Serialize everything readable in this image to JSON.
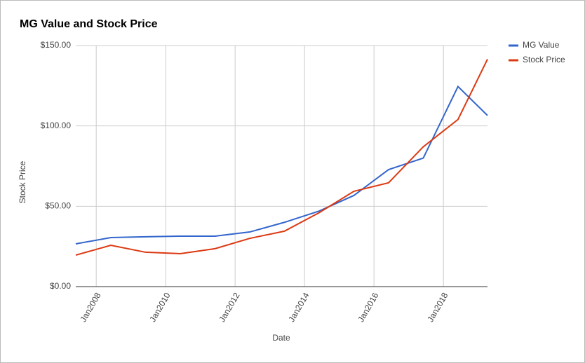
{
  "chart_data": {
    "type": "line",
    "title": "MG Value and Stock Price",
    "x_label": "Date",
    "y_label": "Stock Price",
    "x": [
      2007.41,
      2008.42,
      2009.42,
      2010.42,
      2011.42,
      2012.42,
      2013.42,
      2014.42,
      2015.42,
      2016.42,
      2017.42,
      2018.42,
      2019.27
    ],
    "series": [
      {
        "name": "MG Value",
        "color": "#3366cc",
        "values": [
          26.6,
          30.5,
          31,
          31.4,
          31.4,
          34,
          40,
          47,
          56.7,
          72.8,
          80,
          124.5,
          106.5
        ]
      },
      {
        "name": "Stock Price",
        "color": "#dc3912",
        "values": [
          19.6,
          25.7,
          21.4,
          20.5,
          23.6,
          30,
          34.5,
          46,
          59.3,
          64.6,
          87,
          104,
          141.5
        ]
      }
    ],
    "xlim": [
      2007.41,
      2019.27
    ],
    "xticks": [
      {
        "value": 2008,
        "label": "Jan2008"
      },
      {
        "value": 2010,
        "label": "Jan2010"
      },
      {
        "value": 2012,
        "label": "Jan2012"
      },
      {
        "value": 2014,
        "label": "Jan2014"
      },
      {
        "value": 2016,
        "label": "Jan2016"
      },
      {
        "value": 2018,
        "label": "Jan2018"
      }
    ],
    "ylim": [
      0,
      150
    ],
    "yticks": [
      {
        "value": 0,
        "label": "$0.00"
      },
      {
        "value": 50,
        "label": "$50.00"
      },
      {
        "value": 100,
        "label": "$100.00"
      },
      {
        "value": 150,
        "label": "$150.00"
      }
    ],
    "grid": true,
    "legend": "right"
  }
}
